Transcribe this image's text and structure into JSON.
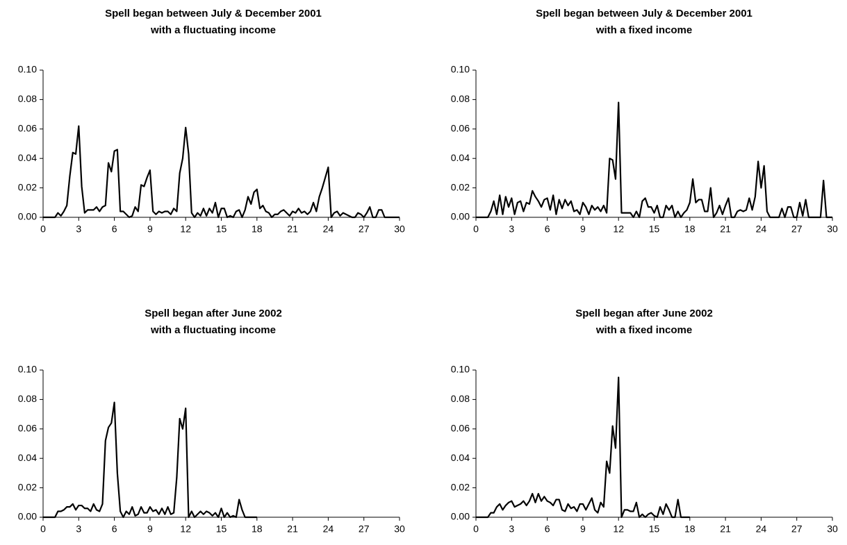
{
  "chart_data": [
    {
      "type": "line",
      "title": [
        "Spell began between July & December 2001",
        "with a fluctuating income"
      ],
      "color": "#000000",
      "x": [
        0,
        0.25,
        0.5,
        0.75,
        1,
        1.25,
        1.5,
        1.75,
        2,
        2.25,
        2.5,
        2.75,
        3,
        3.25,
        3.5,
        3.75,
        4,
        4.25,
        4.5,
        4.75,
        5,
        5.25,
        5.5,
        5.75,
        6,
        6.25,
        6.5,
        6.75,
        7,
        7.25,
        7.5,
        7.75,
        8,
        8.25,
        8.5,
        8.75,
        9,
        9.25,
        9.5,
        9.75,
        10,
        10.25,
        10.5,
        10.75,
        11,
        11.25,
        11.5,
        11.75,
        12,
        12.25,
        12.5,
        12.75,
        13,
        13.25,
        13.5,
        13.75,
        14,
        14.25,
        14.5,
        14.75,
        15,
        15.25,
        15.5,
        15.75,
        16,
        16.25,
        16.5,
        16.75,
        17,
        17.25,
        17.5,
        17.75,
        18,
        18.25,
        18.5,
        18.75,
        19,
        19.25,
        19.5,
        19.75,
        20,
        20.25,
        20.5,
        20.75,
        21,
        21.25,
        21.5,
        21.75,
        22,
        22.25,
        22.5,
        22.75,
        23,
        23.25,
        23.5,
        23.75,
        24,
        24.25,
        24.5,
        24.75,
        25,
        25.25,
        25.5,
        25.75,
        26,
        26.25,
        26.5,
        26.75,
        27,
        27.25,
        27.5,
        27.75,
        28,
        28.25,
        28.5,
        28.75,
        29,
        29.25,
        29.5,
        29.75,
        30
      ],
      "values": [
        0,
        0,
        0,
        0,
        0,
        0.003,
        0.001,
        0.004,
        0.008,
        0.028,
        0.044,
        0.043,
        0.062,
        0.021,
        0.003,
        0.005,
        0.005,
        0.005,
        0.007,
        0.004,
        0.007,
        0.008,
        0.037,
        0.031,
        0.045,
        0.046,
        0.004,
        0.004,
        0.002,
        0,
        0.001,
        0.007,
        0.004,
        0.022,
        0.021,
        0.027,
        0.032,
        0.004,
        0.002,
        0.004,
        0.003,
        0.004,
        0.004,
        0.002,
        0.006,
        0.004,
        0.03,
        0.04,
        0.061,
        0.043,
        0.003,
        0,
        0.003,
        0.001,
        0.006,
        0.001,
        0.006,
        0.003,
        0.01,
        0,
        0.006,
        0.006,
        0,
        0.001,
        0,
        0.004,
        0.005,
        0,
        0.005,
        0.014,
        0.009,
        0.017,
        0.019,
        0.006,
        0.008,
        0.004,
        0.003,
        0,
        0.002,
        0.002,
        0.004,
        0.005,
        0.003,
        0.001,
        0.004,
        0.003,
        0.006,
        0.003,
        0.004,
        0.002,
        0.004,
        0.01,
        0.004,
        0.014,
        0.02,
        0.027,
        0.034,
        0,
        0.003,
        0.004,
        0.001,
        0.003,
        0.002,
        0.001,
        0,
        0,
        0.003,
        0.002,
        0,
        0.003,
        0.007,
        0,
        0,
        0.005,
        0.005,
        0,
        0,
        0,
        0,
        0,
        0
      ],
      "xlim": [
        0,
        30
      ],
      "xticks": [
        0,
        3,
        6,
        9,
        12,
        15,
        18,
        21,
        24,
        27,
        30
      ],
      "ylim": [
        0,
        0.1
      ],
      "yticks": [
        {
          "value": 0,
          "label": "0.00"
        },
        {
          "value": 0.02,
          "label": "0.02"
        },
        {
          "value": 0.04,
          "label": "0.04"
        },
        {
          "value": 0.06,
          "label": "0.06"
        },
        {
          "value": 0.08,
          "label": "0.08"
        },
        {
          "value": 0.1,
          "label": "0.10"
        }
      ]
    },
    {
      "type": "line",
      "title": [
        "Spell began between July & December 2001",
        "with a fixed income"
      ],
      "color": "#000000",
      "x": [
        0,
        0.25,
        0.5,
        0.75,
        1,
        1.25,
        1.5,
        1.75,
        2,
        2.25,
        2.5,
        2.75,
        3,
        3.25,
        3.5,
        3.75,
        4,
        4.25,
        4.5,
        4.75,
        5,
        5.25,
        5.5,
        5.75,
        6,
        6.25,
        6.5,
        6.75,
        7,
        7.25,
        7.5,
        7.75,
        8,
        8.25,
        8.5,
        8.75,
        9,
        9.25,
        9.5,
        9.75,
        10,
        10.25,
        10.5,
        10.75,
        11,
        11.25,
        11.5,
        11.75,
        12,
        12.25,
        12.5,
        12.75,
        13,
        13.25,
        13.5,
        13.75,
        14,
        14.25,
        14.5,
        14.75,
        15,
        15.25,
        15.5,
        15.75,
        16,
        16.25,
        16.5,
        16.75,
        17,
        17.25,
        17.5,
        17.75,
        18,
        18.25,
        18.5,
        18.75,
        19,
        19.25,
        19.5,
        19.75,
        20,
        20.25,
        20.5,
        20.75,
        21,
        21.25,
        21.5,
        21.75,
        22,
        22.25,
        22.5,
        22.75,
        23,
        23.25,
        23.5,
        23.75,
        24,
        24.25,
        24.5,
        24.75,
        25,
        25.25,
        25.5,
        25.75,
        26,
        26.25,
        26.5,
        26.75,
        27,
        27.25,
        27.5,
        27.75,
        28,
        28.25,
        28.5,
        28.75,
        29,
        29.25,
        29.5,
        29.75,
        30
      ],
      "values": [
        0,
        0,
        0,
        0,
        0,
        0.004,
        0.011,
        0.002,
        0.015,
        0.002,
        0.014,
        0.007,
        0.013,
        0.002,
        0.01,
        0.011,
        0.004,
        0.01,
        0.009,
        0.018,
        0.014,
        0.011,
        0.007,
        0.012,
        0.013,
        0.005,
        0.015,
        0.002,
        0.012,
        0.006,
        0.012,
        0.008,
        0.011,
        0.004,
        0.005,
        0.002,
        0.01,
        0.007,
        0.002,
        0.008,
        0.005,
        0.007,
        0.004,
        0.008,
        0.003,
        0.04,
        0.039,
        0.026,
        0.078,
        0.003,
        0.003,
        0.003,
        0.003,
        0,
        0.004,
        0,
        0.011,
        0.013,
        0.007,
        0.007,
        0.003,
        0.008,
        0,
        0,
        0.008,
        0.005,
        0.008,
        0,
        0.004,
        0,
        0.003,
        0.005,
        0.01,
        0.026,
        0.01,
        0.012,
        0.012,
        0.004,
        0.004,
        0.02,
        0,
        0.003,
        0.008,
        0.002,
        0.008,
        0.013,
        0,
        0,
        0.004,
        0.005,
        0.004,
        0.005,
        0.013,
        0.005,
        0.014,
        0.038,
        0.02,
        0.035,
        0.004,
        0,
        0,
        0,
        0,
        0.006,
        0,
        0.007,
        0.007,
        0,
        0,
        0.01,
        0.001,
        0.012,
        0,
        0,
        0,
        0,
        0,
        0.025,
        0,
        0,
        0
      ],
      "xlim": [
        0,
        30
      ],
      "xticks": [
        0,
        3,
        6,
        9,
        12,
        15,
        18,
        21,
        24,
        27,
        30
      ],
      "ylim": [
        0,
        0.1
      ],
      "yticks": [
        {
          "value": 0,
          "label": "0.00"
        },
        {
          "value": 0.02,
          "label": "0.02"
        },
        {
          "value": 0.04,
          "label": "0.04"
        },
        {
          "value": 0.06,
          "label": "0.06"
        },
        {
          "value": 0.08,
          "label": "0.08"
        },
        {
          "value": 0.1,
          "label": "0.10"
        }
      ]
    },
    {
      "type": "line",
      "title": [
        "Spell began after June 2002",
        "with a fluctuating income"
      ],
      "color": "#000000",
      "x": [
        0,
        0.25,
        0.5,
        0.75,
        1,
        1.25,
        1.5,
        1.75,
        2,
        2.25,
        2.5,
        2.75,
        3,
        3.25,
        3.5,
        3.75,
        4,
        4.25,
        4.5,
        4.75,
        5,
        5.25,
        5.5,
        5.75,
        6,
        6.25,
        6.5,
        6.75,
        7,
        7.25,
        7.5,
        7.75,
        8,
        8.25,
        8.5,
        8.75,
        9,
        9.25,
        9.5,
        9.75,
        10,
        10.25,
        10.5,
        10.75,
        11,
        11.25,
        11.5,
        11.75,
        12,
        12.25,
        12.5,
        12.75,
        13,
        13.25,
        13.5,
        13.75,
        14,
        14.25,
        14.5,
        14.75,
        15,
        15.25,
        15.5,
        15.75,
        16,
        16.25,
        16.5,
        16.75,
        17,
        17.25,
        17.5,
        17.75,
        18
      ],
      "values": [
        0,
        0,
        0,
        0,
        0,
        0.004,
        0.004,
        0.005,
        0.007,
        0.007,
        0.009,
        0.005,
        0.008,
        0.008,
        0.006,
        0.006,
        0.004,
        0.009,
        0.005,
        0.004,
        0.009,
        0.052,
        0.061,
        0.064,
        0.078,
        0.03,
        0.004,
        0,
        0.004,
        0.002,
        0.007,
        0.001,
        0.002,
        0.007,
        0.003,
        0.003,
        0.007,
        0.004,
        0.005,
        0.002,
        0.006,
        0.002,
        0.007,
        0.002,
        0.003,
        0.027,
        0.067,
        0.06,
        0.074,
        0,
        0.004,
        0,
        0.002,
        0.004,
        0.002,
        0.004,
        0.003,
        0.001,
        0.003,
        0,
        0.006,
        0,
        0.003,
        0,
        0.001,
        0,
        0.012,
        0.005,
        0,
        0,
        0,
        0,
        0
      ],
      "xlim": [
        0,
        30
      ],
      "xticks": [
        0,
        3,
        6,
        9,
        12,
        15,
        18,
        21,
        24,
        27,
        30
      ],
      "ylim": [
        0,
        0.1
      ],
      "yticks": [
        {
          "value": 0,
          "label": "0.00"
        },
        {
          "value": 0.02,
          "label": "0.02"
        },
        {
          "value": 0.04,
          "label": "0.04"
        },
        {
          "value": 0.06,
          "label": "0.06"
        },
        {
          "value": 0.08,
          "label": "0.08"
        },
        {
          "value": 0.1,
          "label": "0.10"
        }
      ]
    },
    {
      "type": "line",
      "title": [
        "Spell began after June 2002",
        "with a fixed income"
      ],
      "color": "#000000",
      "x": [
        0,
        0.25,
        0.5,
        0.75,
        1,
        1.25,
        1.5,
        1.75,
        2,
        2.25,
        2.5,
        2.75,
        3,
        3.25,
        3.5,
        3.75,
        4,
        4.25,
        4.5,
        4.75,
        5,
        5.25,
        5.5,
        5.75,
        6,
        6.25,
        6.5,
        6.75,
        7,
        7.25,
        7.5,
        7.75,
        8,
        8.25,
        8.5,
        8.75,
        9,
        9.25,
        9.5,
        9.75,
        10,
        10.25,
        10.5,
        10.75,
        11,
        11.25,
        11.5,
        11.75,
        12,
        12.25,
        12.5,
        12.75,
        13,
        13.25,
        13.5,
        13.75,
        14,
        14.25,
        14.5,
        14.75,
        15,
        15.25,
        15.5,
        15.75,
        16,
        16.25,
        16.5,
        16.75,
        17,
        17.25,
        17.5,
        17.75,
        18
      ],
      "values": [
        0,
        0,
        0,
        0,
        0,
        0.003,
        0.003,
        0.007,
        0.009,
        0.005,
        0.008,
        0.01,
        0.011,
        0.007,
        0.008,
        0.009,
        0.011,
        0.008,
        0.011,
        0.016,
        0.01,
        0.016,
        0.011,
        0.014,
        0.011,
        0.01,
        0.008,
        0.012,
        0.012,
        0.005,
        0.004,
        0.009,
        0.006,
        0.007,
        0.004,
        0.009,
        0.009,
        0.005,
        0.009,
        0.013,
        0.005,
        0.003,
        0.01,
        0.007,
        0.038,
        0.03,
        0.062,
        0.047,
        0.095,
        0,
        0.005,
        0.005,
        0.004,
        0.004,
        0.01,
        0,
        0.002,
        0,
        0.002,
        0.003,
        0.001,
        0,
        0.007,
        0.002,
        0.009,
        0.005,
        0,
        0,
        0.012,
        0,
        0,
        0,
        0
      ],
      "xlim": [
        0,
        30
      ],
      "xticks": [
        0,
        3,
        6,
        9,
        12,
        15,
        18,
        21,
        24,
        27,
        30
      ],
      "ylim": [
        0,
        0.1
      ],
      "yticks": [
        {
          "value": 0,
          "label": "0.00"
        },
        {
          "value": 0.02,
          "label": "0.02"
        },
        {
          "value": 0.04,
          "label": "0.04"
        },
        {
          "value": 0.06,
          "label": "0.06"
        },
        {
          "value": 0.08,
          "label": "0.08"
        },
        {
          "value": 0.1,
          "label": "0.10"
        }
      ]
    }
  ]
}
